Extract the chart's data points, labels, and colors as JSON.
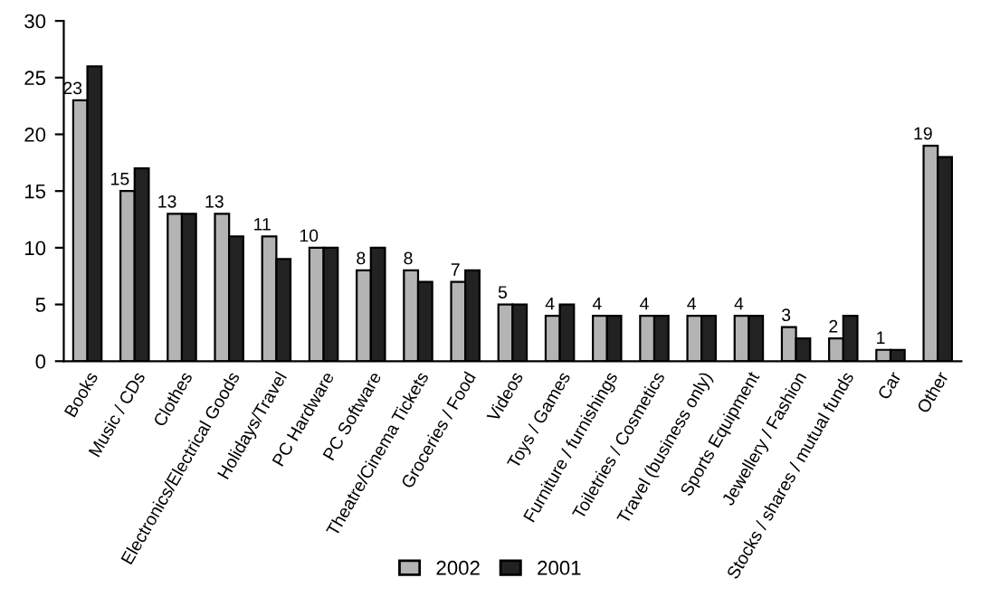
{
  "chart_data": {
    "type": "bar",
    "categories": [
      "Books",
      "Music / CDs",
      "Clothes",
      "Electronics/Electrical Goods",
      "Holidays/Travel",
      "PC Hardware",
      "PC Software",
      "Theatre/Cinema Tickets",
      "Groceries / Food",
      "Videos",
      "Toys / Games",
      "Furniture / furnishings",
      "Toiletries / Cosmetics",
      "Travel (business only)",
      "Sports Equipment",
      "Jewellery / Fashion",
      "Stocks / shares / mutual funds",
      "Car",
      "Other"
    ],
    "series": [
      {
        "name": "2002",
        "color": "#b4b4b4",
        "values": [
          23,
          15,
          13,
          13,
          11,
          10,
          8,
          8,
          7,
          5,
          4,
          4,
          4,
          4,
          4,
          3,
          2,
          1,
          19
        ],
        "value_labels": [
          "23",
          "15",
          "13",
          "13",
          "11",
          "10",
          "8",
          "8",
          "7",
          "5",
          "4",
          "4",
          "4",
          "4",
          "4",
          "3",
          "2",
          "1",
          "19"
        ]
      },
      {
        "name": "2001",
        "color": "#222222",
        "values": [
          26,
          17,
          13,
          11,
          9,
          10,
          10,
          7,
          8,
          5,
          5,
          4,
          4,
          4,
          4,
          2,
          4,
          1,
          18
        ]
      }
    ],
    "ylim": [
      0,
      30
    ],
    "yticks": [
      0,
      5,
      10,
      15,
      20,
      25,
      30
    ],
    "grid": false,
    "legend": "bottom"
  }
}
